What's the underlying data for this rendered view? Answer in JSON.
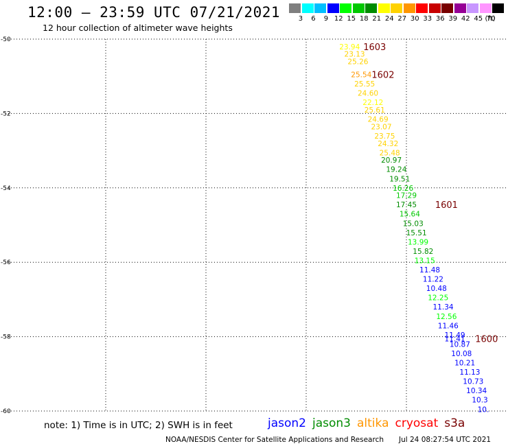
{
  "header": {
    "title": "12:00 – 23:59 UTC 07/21/2021",
    "subtitle": "12 hour collection of altimeter wave heights"
  },
  "legend": {
    "unit": "(ft)",
    "items": [
      {
        "label": "3",
        "color": "#7f7f7f"
      },
      {
        "label": "6",
        "color": "#00ffff"
      },
      {
        "label": "9",
        "color": "#00bfff"
      },
      {
        "label": "12",
        "color": "#0000ff"
      },
      {
        "label": "15",
        "color": "#00ff00"
      },
      {
        "label": "18",
        "color": "#00c800"
      },
      {
        "label": "21",
        "color": "#008c00"
      },
      {
        "label": "24",
        "color": "#ffff00"
      },
      {
        "label": "27",
        "color": "#ffd200"
      },
      {
        "label": "30",
        "color": "#ff9600"
      },
      {
        "label": "33",
        "color": "#ff0000"
      },
      {
        "label": "36",
        "color": "#c80000"
      },
      {
        "label": "39",
        "color": "#780000"
      },
      {
        "label": "42",
        "color": "#960096"
      },
      {
        "label": "45",
        "color": "#c896ff"
      },
      {
        "label": "70",
        "color": "#ff96ff"
      },
      {
        "label": "",
        "color": "#000000"
      }
    ]
  },
  "chart_data": {
    "type": "scatter",
    "xlim": [
      90,
      105
    ],
    "ylim": [
      -60,
      -50
    ],
    "x_ticks": [
      90,
      93,
      96,
      99,
      102,
      105
    ],
    "y_ticks": [
      -50,
      -52,
      -54,
      -56,
      -58,
      -60
    ],
    "grid": true,
    "points": [
      {
        "lon": 100.3,
        "lat": -50.2,
        "label": "23.94",
        "color": "#ffff00"
      },
      {
        "lon": 100.45,
        "lat": -50.4,
        "label": "23.13",
        "color": "#ffd200"
      },
      {
        "lon": 100.55,
        "lat": -50.6,
        "label": "25.26",
        "color": "#ffd200"
      },
      {
        "lon": 100.65,
        "lat": -50.95,
        "label": "25.54",
        "color": "#ff9600"
      },
      {
        "lon": 100.75,
        "lat": -51.2,
        "label": "25.55",
        "color": "#ffd200"
      },
      {
        "lon": 100.85,
        "lat": -51.45,
        "label": "24.60",
        "color": "#ffd200"
      },
      {
        "lon": 101.0,
        "lat": -51.7,
        "label": "22.12",
        "color": "#ffff00"
      },
      {
        "lon": 101.05,
        "lat": -51.9,
        "label": "25.61",
        "color": "#ffd200"
      },
      {
        "lon": 101.15,
        "lat": -52.15,
        "label": "24.69",
        "color": "#ffd200"
      },
      {
        "lon": 101.25,
        "lat": -52.35,
        "label": "23.07",
        "color": "#ffd200"
      },
      {
        "lon": 101.35,
        "lat": -52.6,
        "label": "23.75",
        "color": "#ffd200"
      },
      {
        "lon": 101.45,
        "lat": -52.8,
        "label": "24.32",
        "color": "#ffd200"
      },
      {
        "lon": 101.5,
        "lat": -53.05,
        "label": "25.48",
        "color": "#ffd200"
      },
      {
        "lon": 101.55,
        "lat": -53.25,
        "label": "20.97",
        "color": "#008c00"
      },
      {
        "lon": 101.7,
        "lat": -53.5,
        "label": "19.24",
        "color": "#008c00"
      },
      {
        "lon": 101.8,
        "lat": -53.75,
        "label": "19.51",
        "color": "#008c00"
      },
      {
        "lon": 101.9,
        "lat": -54.0,
        "label": "16.26",
        "color": "#00c800"
      },
      {
        "lon": 102.0,
        "lat": -54.2,
        "label": "17.29",
        "color": "#00c800"
      },
      {
        "lon": 102.0,
        "lat": -54.45,
        "label": "17.45",
        "color": "#008c00"
      },
      {
        "lon": 102.1,
        "lat": -54.7,
        "label": "15.64",
        "color": "#00c800"
      },
      {
        "lon": 102.2,
        "lat": -54.95,
        "label": "15.03",
        "color": "#008c00"
      },
      {
        "lon": 102.3,
        "lat": -55.2,
        "label": "15.51",
        "color": "#008c00"
      },
      {
        "lon": 102.35,
        "lat": -55.45,
        "label": "13.99",
        "color": "#00ff00"
      },
      {
        "lon": 102.5,
        "lat": -55.7,
        "label": "15.82",
        "color": "#008c00"
      },
      {
        "lon": 102.55,
        "lat": -55.95,
        "label": "13.15",
        "color": "#00ff00"
      },
      {
        "lon": 102.7,
        "lat": -56.2,
        "label": "11.48",
        "color": "#0000ff"
      },
      {
        "lon": 102.8,
        "lat": -56.45,
        "label": "11.22",
        "color": "#0000ff"
      },
      {
        "lon": 102.9,
        "lat": -56.7,
        "label": "10.48",
        "color": "#0000ff"
      },
      {
        "lon": 102.95,
        "lat": -56.95,
        "label": "12.25",
        "color": "#00ff00"
      },
      {
        "lon": 103.1,
        "lat": -57.2,
        "label": "11.34",
        "color": "#0000ff"
      },
      {
        "lon": 103.2,
        "lat": -57.45,
        "label": "12.56",
        "color": "#00ff00"
      },
      {
        "lon": 103.25,
        "lat": -57.7,
        "label": "11.46",
        "color": "#0000ff"
      },
      {
        "lon": 103.45,
        "lat": -57.95,
        "label": "11.49",
        "color": "#0000ff"
      },
      {
        "lon": 103.45,
        "lat": -58.05,
        "label": "11.41",
        "color": "#0000ff"
      },
      {
        "lon": 103.6,
        "lat": -58.2,
        "label": "10.87",
        "color": "#0000ff"
      },
      {
        "lon": 103.65,
        "lat": -58.45,
        "label": "10.08",
        "color": "#0000ff"
      },
      {
        "lon": 103.75,
        "lat": -58.7,
        "label": "10.21",
        "color": "#0000ff"
      },
      {
        "lon": 103.9,
        "lat": -58.95,
        "label": "11.13",
        "color": "#0000ff"
      },
      {
        "lon": 104.0,
        "lat": -59.2,
        "label": "10.73",
        "color": "#0000ff"
      },
      {
        "lon": 104.1,
        "lat": -59.45,
        "label": "10.34",
        "color": "#0000ff"
      },
      {
        "lon": 104.2,
        "lat": -59.7,
        "label": "10.3",
        "color": "#0000ff"
      },
      {
        "lon": 104.3,
        "lat": -59.95,
        "label": "10.",
        "color": "#0000ff"
      },
      {
        "lon": 104.4,
        "lat": -60.2,
        "label": "10",
        "color": "#0000ff"
      }
    ],
    "time_labels": [
      {
        "lon": 101.05,
        "lat": -50.2,
        "label": "1603",
        "color": "#780000"
      },
      {
        "lon": 101.3,
        "lat": -50.95,
        "label": "1602",
        "color": "#780000"
      },
      {
        "lon": 103.2,
        "lat": -54.45,
        "label": "1601",
        "color": "#780000"
      },
      {
        "lon": 104.4,
        "lat": -58.05,
        "label": "1600",
        "color": "#780000"
      }
    ]
  },
  "footer": {
    "note": "note:  1) Time is in UTC;  2) SWH is in feet",
    "satellites": [
      {
        "name": "jason2",
        "color": "#0000ff"
      },
      {
        "name": "jason3",
        "color": "#008c00"
      },
      {
        "name": "altika",
        "color": "#ff9600"
      },
      {
        "name": "cryosat",
        "color": "#ff0000"
      },
      {
        "name": "s3a",
        "color": "#780000"
      }
    ],
    "credit": "NOAA/NESDIS Center for Satellite Applications and Research",
    "timestamp": "Jul 24 08:27:54 UTC 2021"
  }
}
